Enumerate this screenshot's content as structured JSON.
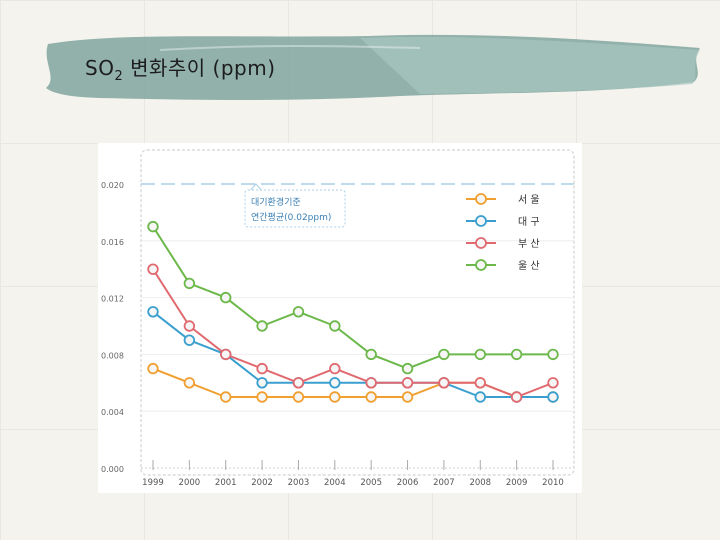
{
  "slide": {
    "title_main": "SO",
    "title_sub": "2",
    "title_rest": " 변화추이 (ppm)"
  },
  "colors": {
    "band": "#7fa59e",
    "seoul": "#f0a030",
    "daegu": "#3a9fcf",
    "busan": "#e06a70",
    "ulsan": "#6cb84a",
    "standard_line": "#a8cfe6"
  },
  "chart_data": {
    "type": "line",
    "x": [
      "1999",
      "2000",
      "2001",
      "2002",
      "2003",
      "2004",
      "2005",
      "2006",
      "2007",
      "2008",
      "2009",
      "2010"
    ],
    "ylim": [
      0,
      0.02
    ],
    "yticks": [
      "0.000",
      "0.004",
      "0.008",
      "0.012",
      "0.016",
      "0.020"
    ],
    "grid": true,
    "legend_position": "top-right",
    "series": [
      {
        "name": "서 울",
        "color_key": "seoul",
        "values": [
          0.007,
          0.006,
          0.005,
          0.005,
          0.005,
          0.005,
          0.005,
          0.005,
          0.006,
          0.006,
          0.005,
          0.005
        ]
      },
      {
        "name": "대 구",
        "color_key": "daegu",
        "values": [
          0.011,
          0.009,
          0.008,
          0.006,
          0.006,
          0.006,
          0.006,
          0.006,
          0.006,
          0.005,
          0.005,
          0.005
        ]
      },
      {
        "name": "부 산",
        "color_key": "busan",
        "values": [
          0.014,
          0.01,
          0.008,
          0.007,
          0.006,
          0.007,
          0.006,
          0.006,
          0.006,
          0.006,
          0.005,
          0.006
        ]
      },
      {
        "name": "울 산",
        "color_key": "ulsan",
        "values": [
          0.017,
          0.013,
          0.012,
          0.01,
          0.011,
          0.01,
          0.008,
          0.007,
          0.008,
          0.008,
          0.008,
          0.008
        ]
      }
    ],
    "reference_line": {
      "value": 0.02,
      "label_line1": "대기환경기준",
      "label_line2": "연간평균(0.02ppm)"
    }
  }
}
